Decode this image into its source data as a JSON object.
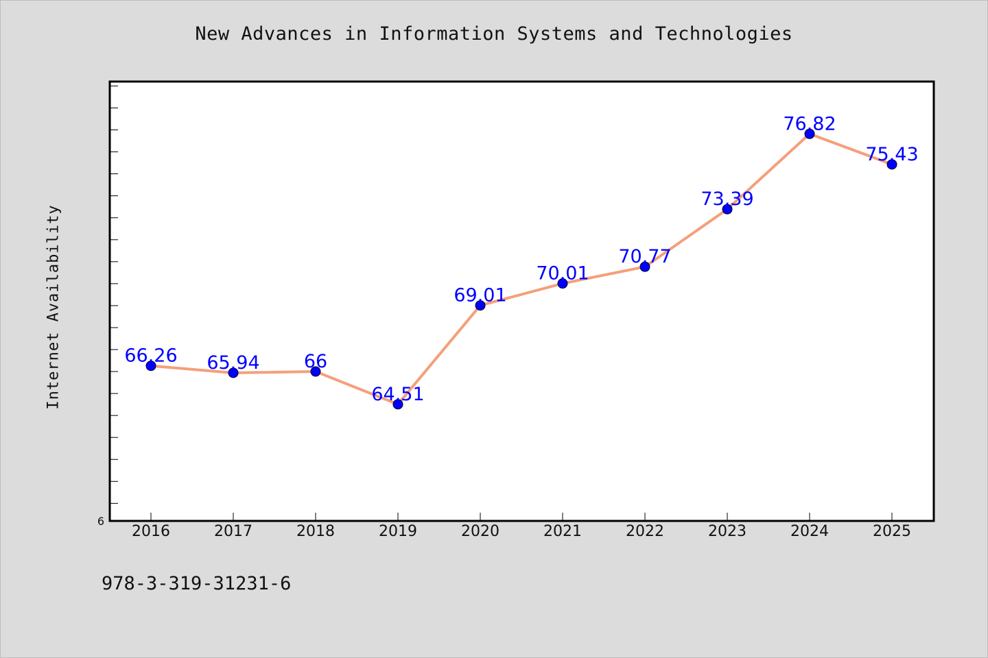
{
  "header": {
    "title": "New Advances in Information Systems and Technologies"
  },
  "footer": {
    "identifier": "978-3-319-31231-6"
  },
  "chart_data": {
    "type": "line",
    "title": "New Advances in Information Systems and Technologies",
    "xlabel": "",
    "ylabel": "Internet Availability",
    "categories": [
      "2016",
      "2017",
      "2018",
      "2019",
      "2020",
      "2021",
      "2022",
      "2023",
      "2024",
      "2025"
    ],
    "series": [
      {
        "values": [
          66.26,
          65.94,
          66,
          64.51,
          69.01,
          70.01,
          70.77,
          73.39,
          76.82,
          75.43
        ],
        "labels": [
          "66.26",
          "65.94",
          "66",
          "64.51",
          "69.01",
          "70.01",
          "70.77",
          "73.39",
          "76.82",
          "75.43"
        ],
        "line_color": "#f4a07a",
        "marker_color": "#0000ff"
      }
    ],
    "y_tick_labels": [
      "6"
    ],
    "ylim": [
      59.2,
      79.2
    ],
    "y_tick_step": 1,
    "grid": false,
    "legend": "none",
    "colors": {
      "background": "#dcdcdc",
      "plot_background": "#ffffff",
      "line": "#f4a07a",
      "marker": "#0000ff",
      "data_label": "#0000ff"
    }
  }
}
